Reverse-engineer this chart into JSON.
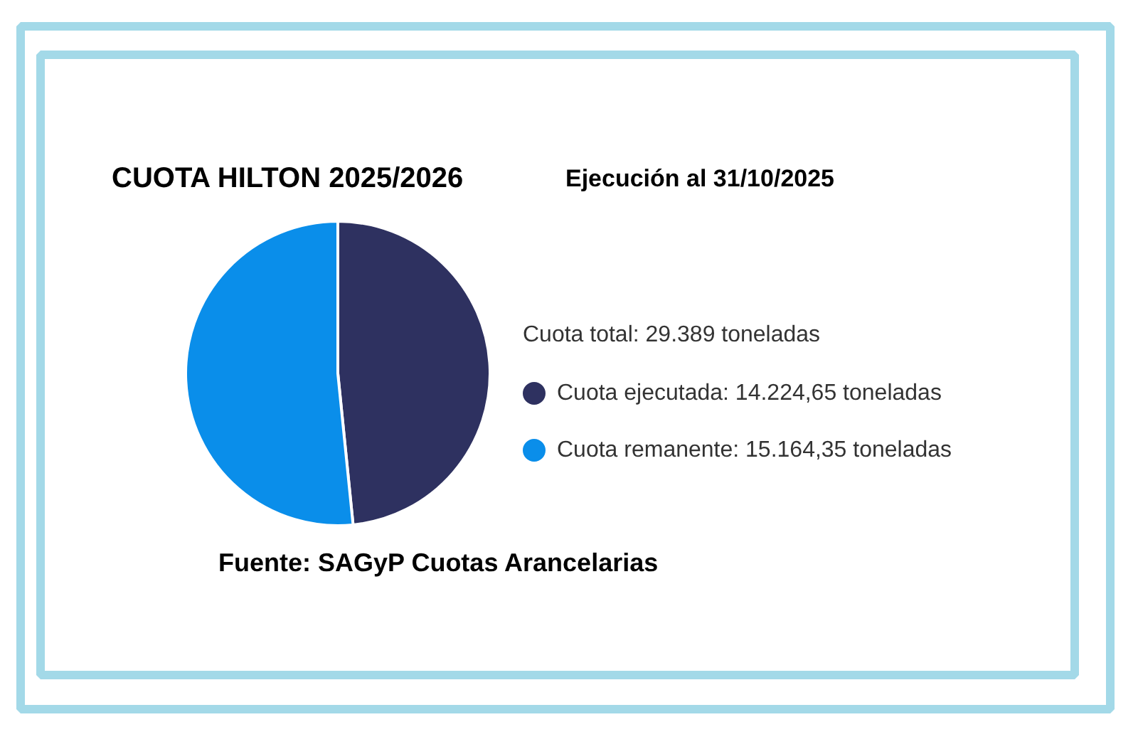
{
  "chart_data": {
    "type": "pie",
    "title": "CUOTA HILTON 2025/2026",
    "subtitle": "Ejecución al 31/10/2025",
    "categories": [
      "Cuota ejecutada",
      "Cuota remanente"
    ],
    "values": [
      14224.65,
      15164.35
    ],
    "value_labels": [
      "14.224,65 toneladas",
      "15.164,35 toneladas"
    ],
    "colors": [
      "#2e3160",
      "#0a8eea"
    ],
    "legend": "right",
    "annotations": [
      "Cuota total: 29.389 toneladas",
      "Fuente: SAGyP Cuotas Arancelarias"
    ]
  }
}
